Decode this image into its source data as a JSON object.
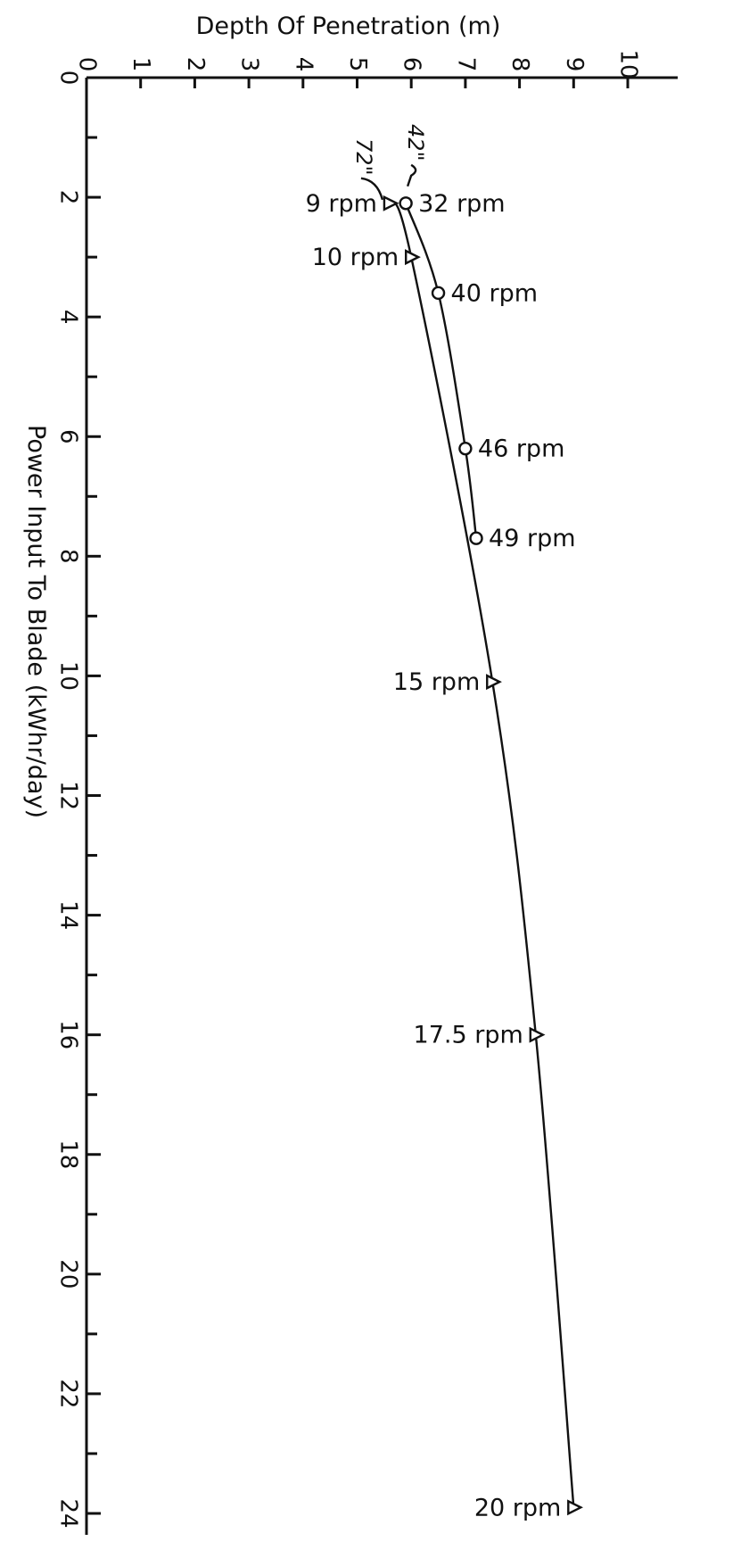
{
  "chart_data": {
    "type": "line",
    "title": "",
    "xlabel": "Depth Of Penetration (m)",
    "ylabel": "Power Input To Blade (kWhr/day)",
    "xlim": [
      0,
      10
    ],
    "ylim": [
      0,
      24
    ],
    "x_ticks": [
      0,
      1,
      2,
      3,
      4,
      5,
      6,
      7,
      8,
      9,
      10
    ],
    "x_tick_labels": [
      "0",
      "1",
      "2",
      "3",
      "4",
      "5",
      "6",
      "7",
      "8",
      "9",
      "10"
    ],
    "y_ticks": [
      0,
      2,
      4,
      6,
      8,
      10,
      12,
      14,
      16,
      18,
      20,
      22,
      24
    ],
    "y_tick_labels": [
      "0",
      "2",
      "4",
      "6",
      "8",
      "10",
      "12",
      "14",
      "16",
      "18",
      "20",
      "22",
      "24"
    ],
    "x_axis_position": "top",
    "orientation": "rotated-90",
    "series": [
      {
        "name": "42\"",
        "marker": "circle",
        "points": [
          {
            "x": 5.9,
            "y": 2.1,
            "label": "32 rpm"
          },
          {
            "x": 6.5,
            "y": 3.6,
            "label": "40 rpm"
          },
          {
            "x": 7.0,
            "y": 6.2,
            "label": "46 rpm"
          },
          {
            "x": 7.2,
            "y": 7.7,
            "label": "49 rpm"
          }
        ]
      },
      {
        "name": "72\"",
        "marker": "triangle",
        "points": [
          {
            "x": 5.6,
            "y": 2.1,
            "label": "9 rpm"
          },
          {
            "x": 6.0,
            "y": 3.0,
            "label": "10 rpm"
          },
          {
            "x": 7.5,
            "y": 10.1,
            "label": "15 rpm"
          },
          {
            "x": 8.3,
            "y": 16.0,
            "label": "17.5 rpm"
          },
          {
            "x": 9.0,
            "y": 23.9,
            "label": "20 rpm"
          }
        ]
      }
    ],
    "grid": false,
    "legend": "none"
  }
}
